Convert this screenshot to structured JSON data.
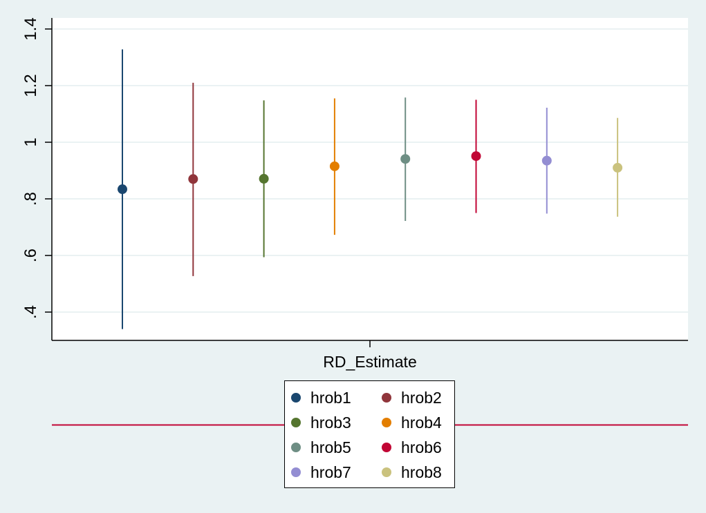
{
  "chart_data": {
    "type": "scatter",
    "subtype": "coefficient-plot-with-confidence-intervals",
    "title": "",
    "xlabel": "",
    "ylabel": "",
    "categories": [
      "RD_Estimate"
    ],
    "ylim": [
      0.3,
      1.42
    ],
    "yticks": [
      0.4,
      0.6,
      0.8,
      1.0,
      1.2,
      1.4
    ],
    "ytick_labels": [
      ".4",
      ".6",
      ".8",
      "1",
      "1.2",
      "1.4"
    ],
    "grid": true,
    "legend_position": "bottom",
    "reference_line": {
      "orientation": "horizontal",
      "color": "#C10534",
      "note": "drawn below plot region across legend"
    },
    "series": [
      {
        "name": "hrob1",
        "color": "#1A476F",
        "estimate": 0.834,
        "ci_low": 0.34,
        "ci_high": 1.328
      },
      {
        "name": "hrob2",
        "color": "#90353B",
        "estimate": 0.87,
        "ci_low": 0.527,
        "ci_high": 1.21
      },
      {
        "name": "hrob3",
        "color": "#55752F",
        "estimate": 0.871,
        "ci_low": 0.594,
        "ci_high": 1.148
      },
      {
        "name": "hrob4",
        "color": "#E37E00",
        "estimate": 0.915,
        "ci_low": 0.673,
        "ci_high": 1.155
      },
      {
        "name": "hrob5",
        "color": "#6E8E84",
        "estimate": 0.941,
        "ci_low": 0.722,
        "ci_high": 1.158
      },
      {
        "name": "hrob6",
        "color": "#C10534",
        "estimate": 0.951,
        "ci_low": 0.75,
        "ci_high": 1.15
      },
      {
        "name": "hrob7",
        "color": "#938DD2",
        "estimate": 0.935,
        "ci_low": 0.748,
        "ci_high": 1.122
      },
      {
        "name": "hrob8",
        "color": "#CAC27E",
        "estimate": 0.91,
        "ci_low": 0.737,
        "ci_high": 1.086
      }
    ]
  },
  "axis": {
    "x_category_label": "RD_Estimate"
  },
  "legend": {
    "items": [
      "hrob1",
      "hrob2",
      "hrob3",
      "hrob4",
      "hrob5",
      "hrob6",
      "hrob7",
      "hrob8"
    ]
  }
}
